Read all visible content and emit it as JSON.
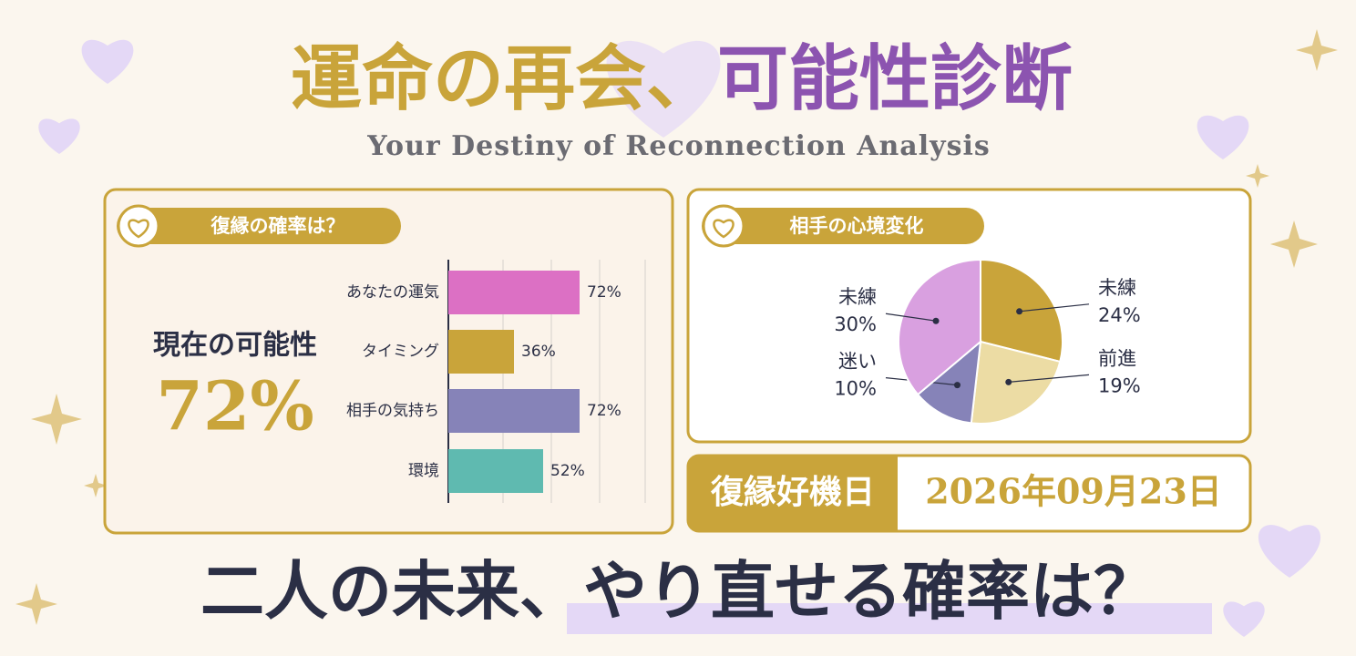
{
  "header": {
    "title_part1": "運命の再会、",
    "title_part2": "可能性診断",
    "subtitle": "Your Destiny of Reconnection Analysis"
  },
  "left_panel": {
    "label": "復縁の確率は？",
    "current_label": "現在の可能性",
    "current_value": "72%"
  },
  "right_panel": {
    "label": "相手の心境変化"
  },
  "date_box": {
    "label": "復縁好機日",
    "date": "2026年09月23日"
  },
  "footer": {
    "part1": "二人の未来、",
    "part2": "やり直せる確率は？"
  },
  "chart_data": [
    {
      "type": "bar",
      "orientation": "horizontal",
      "categories": [
        "あなたの運気",
        "タイミング",
        "相手の気持ち",
        "環境"
      ],
      "values": [
        72,
        36,
        72,
        52
      ],
      "value_labels": [
        "72%",
        "36%",
        "72%",
        "52%"
      ],
      "colors": [
        "#dc70c4",
        "#c9a43a",
        "#8683b8",
        "#5fbab0"
      ],
      "xlim": [
        0,
        100
      ]
    },
    {
      "type": "pie",
      "categories": [
        "未練",
        "前進",
        "迷い",
        "未練"
      ],
      "values": [
        24,
        19,
        10,
        30
      ],
      "value_labels": [
        "24%",
        "19%",
        "10%",
        "30%"
      ],
      "colors": [
        "#c9a43a",
        "#ecdca4",
        "#8683b8",
        "#d9a0e0"
      ]
    }
  ]
}
